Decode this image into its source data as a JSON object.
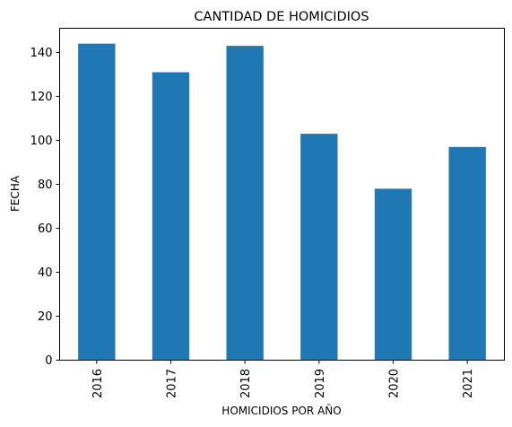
{
  "chart_data": {
    "type": "bar",
    "title": "CANTIDAD DE HOMICIDIOS",
    "xlabel": "HOMICIDIOS POR AÑO",
    "ylabel": "FECHA",
    "categories": [
      "2016",
      "2017",
      "2018",
      "2019",
      "2020",
      "2021"
    ],
    "values": [
      144,
      131,
      143,
      103,
      78,
      97
    ],
    "ylim": [
      0,
      151
    ],
    "yticks": [
      0,
      20,
      40,
      60,
      80,
      100,
      120,
      140
    ],
    "grid": false,
    "legend": "none",
    "bar_color": "#1f77b4"
  }
}
